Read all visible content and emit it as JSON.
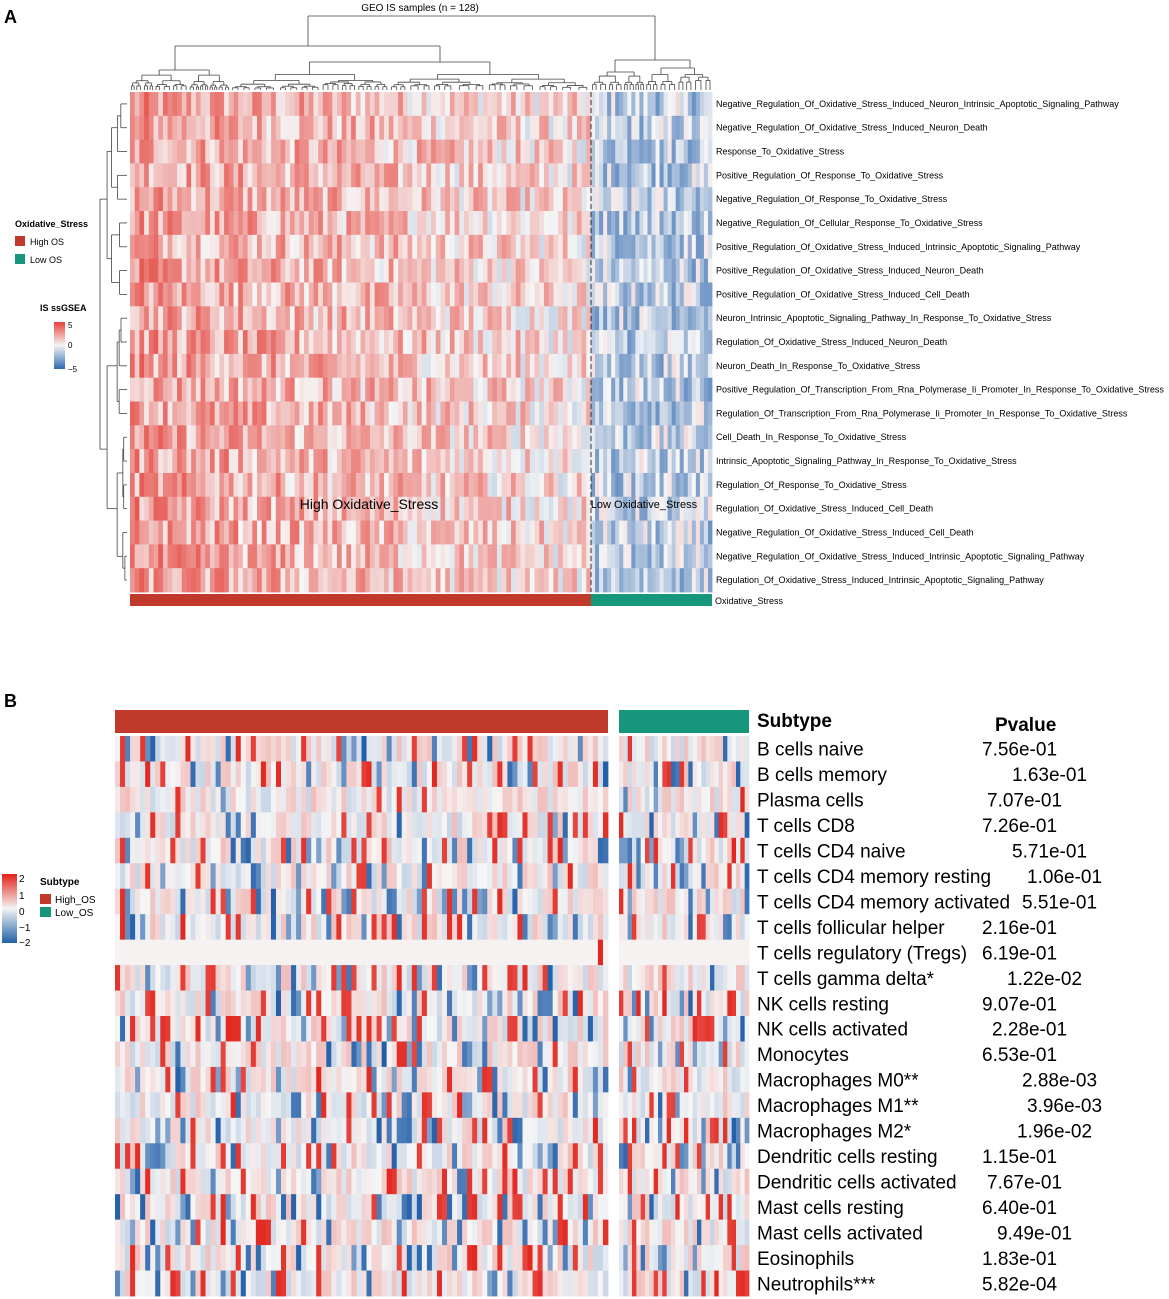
{
  "chart_data": [
    {
      "type": "heatmap",
      "panel_label": "A",
      "title": "GEO IS samples (n = 128)",
      "group_split": {
        "high": 98,
        "low": 30
      },
      "rows": [
        "Negative_Regulation_Of_Oxidative_Stress_Induced_Neuron_Intrinsic_Apoptotic_Signaling_Pathway",
        "Negative_Regulation_Of_Oxidative_Stress_Induced_Neuron_Death",
        "Response_To_Oxidative_Stress",
        "Positive_Regulation_Of_Response_To_Oxidative_Stress",
        "Negative_Regulation_Of_Response_To_Oxidative_Stress",
        "Negative_Regulation_Of_Cellular_Response_To_Oxidative_Stress",
        "Positive_Regulation_Of_Oxidative_Stress_Induced_Intrinsic_Apoptotic_Signaling_Pathway",
        "Positive_Regulation_Of_Oxidative_Stress_Induced_Neuron_Death",
        "Positive_Regulation_Of_Oxidative_Stress_Induced_Cell_Death",
        "Neuron_Intrinsic_Apoptotic_Signaling_Pathway_In_Response_To_Oxidative_Stress",
        "Regulation_Of_Oxidative_Stress_Induced_Neuron_Death",
        "Neuron_Death_In_Response_To_Oxidative_Stress",
        "Positive_Regulation_Of_Transcription_From_Rna_Polymerase_Ii_Promoter_In_Response_To_Oxidative_Stress",
        "Regulation_Of_Transcription_From_Rna_Polymerase_Ii_Promoter_In_Response_To_Oxidative_Stress",
        "Cell_Death_In_Response_To_Oxidative_Stress",
        "Intrinsic_Apoptotic_Signaling_Pathway_In_Response_To_Oxidative_Stress",
        "Regulation_Of_Response_To_Oxidative_Stress",
        "Regulation_Of_Oxidative_Stress_Induced_Cell_Death",
        "Negative_Regulation_Of_Oxidative_Stress_Induced_Cell_Death",
        "Negative_Regulation_Of_Oxidative_Stress_Induced_Intrinsic_Apoptotic_Signaling_Pathway",
        "Regulation_Of_Oxidative_Stress_Induced_Intrinsic_Apoptotic_Signaling_Pathway"
      ],
      "annotation_label": "Oxidative_Stress",
      "high_region_label": "High Oxidative_Stress",
      "low_region_label": "Low Oxidative_Stress",
      "legend": {
        "group_title": "Oxidative_Stress",
        "groups": [
          {
            "name": "High OS",
            "color": "#c0392b"
          },
          {
            "name": "Low OS",
            "color": "#16967a"
          }
        ],
        "scale_title": "IS ssGSEA",
        "scale_ticks": [
          "5",
          "0",
          "−5"
        ]
      },
      "value_range": [
        -5,
        5
      ]
    },
    {
      "type": "heatmap",
      "panel_label": "B",
      "group_split": {
        "high": 98,
        "low": 30
      },
      "subtype_header": "Subtype",
      "pvalue_header": "Pvalue",
      "rows": [
        {
          "cell": "B cells naive",
          "p": "7.56e-01"
        },
        {
          "cell": "B cells memory",
          "p": "1.63e-01"
        },
        {
          "cell": "Plasma cells",
          "p": "7.07e-01"
        },
        {
          "cell": "T cells CD8",
          "p": "7.26e-01"
        },
        {
          "cell": "T cells CD4 naive",
          "p": "5.71e-01"
        },
        {
          "cell": "T cells CD4 memory resting",
          "p": "1.06e-01"
        },
        {
          "cell": "T cells CD4 memory activated",
          "p": "5.51e-01"
        },
        {
          "cell": "T cells follicular helper",
          "p": "2.16e-01"
        },
        {
          "cell": "T cells regulatory (Tregs)",
          "p": "6.19e-01"
        },
        {
          "cell": "T cells gamma delta*",
          "p": "1.22e-02"
        },
        {
          "cell": "NK cells resting",
          "p": "9.07e-01"
        },
        {
          "cell": "NK cells activated",
          "p": "2.28e-01"
        },
        {
          "cell": "Monocytes",
          "p": "6.53e-01"
        },
        {
          "cell": "Macrophages M0**",
          "p": "2.88e-03"
        },
        {
          "cell": "Macrophages M1**",
          "p": "3.96e-03"
        },
        {
          "cell": "Macrophages M2*",
          "p": "1.96e-02"
        },
        {
          "cell": "Dendritic cells resting",
          "p": "1.15e-01"
        },
        {
          "cell": "Dendritic cells activated",
          "p": "7.67e-01"
        },
        {
          "cell": "Mast cells resting",
          "p": "6.40e-01"
        },
        {
          "cell": "Mast cells activated",
          "p": "9.49e-01"
        },
        {
          "cell": "Eosinophils",
          "p": "1.83e-01"
        },
        {
          "cell": "Neutrophils***",
          "p": "5.82e-04"
        }
      ],
      "legend": {
        "scale_ticks": [
          "2",
          "1",
          "0",
          "−1",
          "−2"
        ],
        "group_title": "Subtype",
        "groups": [
          {
            "name": "High_OS",
            "color": "#c0392b"
          },
          {
            "name": "Low_OS",
            "color": "#16967a"
          }
        ]
      },
      "value_range": [
        -2,
        2
      ]
    }
  ]
}
